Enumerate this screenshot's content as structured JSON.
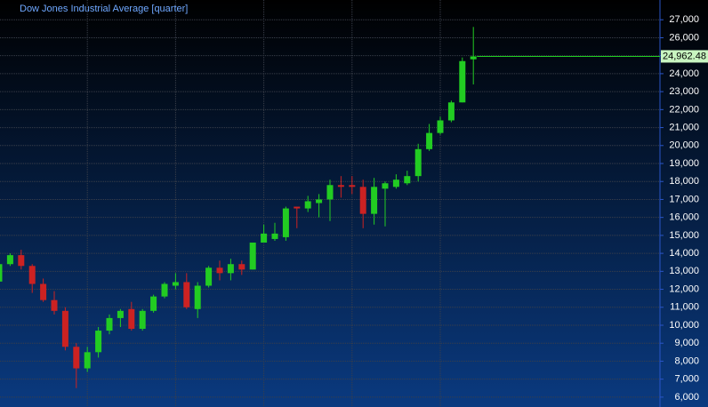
{
  "chart_data": {
    "type": "candlestick",
    "title": "Dow Jones Industrial Average [quarter]",
    "series": [
      {
        "up_color": "#22cc22",
        "down_color": "#cc2222",
        "open": [
          12430,
          13400,
          13900,
          13300,
          12300,
          11400,
          10800,
          8800,
          7600,
          8500,
          9700,
          10400,
          10900,
          9800,
          10800,
          11600,
          12200,
          12400,
          10900,
          12200,
          13200,
          12900,
          13400,
          13100,
          14600,
          14800,
          14900,
          16600,
          16500,
          16800,
          17000,
          17800,
          17800,
          17700,
          16200,
          17600,
          17700,
          17900,
          18300,
          19800,
          20700,
          21400,
          22400,
          24800
        ],
        "high": [
          13700,
          14000,
          14200,
          13400,
          12600,
          11900,
          11000,
          9000,
          8800,
          9900,
          10600,
          10900,
          11300,
          10900,
          11700,
          12400,
          12900,
          12900,
          12400,
          13300,
          13600,
          13700,
          13600,
          14600,
          15600,
          15700,
          16600,
          16600,
          17200,
          17300,
          18100,
          18300,
          18300,
          18100,
          18200,
          18000,
          18400,
          18600,
          20100,
          21200,
          21600,
          22500,
          24900,
          26600
        ],
        "low": [
          12400,
          13300,
          13100,
          11800,
          11300,
          10600,
          8600,
          6500,
          7400,
          8200,
          9500,
          9900,
          9700,
          9700,
          10700,
          11500,
          12000,
          10900,
          10400,
          12100,
          12500,
          12500,
          12800,
          13100,
          14600,
          14700,
          14700,
          15400,
          16300,
          16000,
          15800,
          17100,
          17300,
          15400,
          15600,
          15500,
          17600,
          17800,
          18000,
          19700,
          20600,
          21300,
          22400,
          23400
        ],
        "close": [
          13400,
          13900,
          13300,
          12300,
          11400,
          10800,
          8800,
          7600,
          8500,
          9700,
          10400,
          10800,
          9800,
          10800,
          11600,
          12300,
          12400,
          11000,
          12200,
          13200,
          12900,
          13400,
          13100,
          14600,
          15100,
          15100,
          16500,
          16500,
          16900,
          17000,
          17800,
          17700,
          17700,
          16200,
          17700,
          17900,
          18100,
          18300,
          19800,
          20700,
          21400,
          22400,
          24700,
          24962.48
        ],
        "last_label": "24,962.48"
      }
    ],
    "ylim": [
      5450,
      28100
    ],
    "yticks": [
      {
        "value": 6000,
        "label": "6,000"
      },
      {
        "value": 7000,
        "label": "7,000"
      },
      {
        "value": 8000,
        "label": "8,000"
      },
      {
        "value": 9000,
        "label": "9,000"
      },
      {
        "value": 10000,
        "label": "10,000"
      },
      {
        "value": 11000,
        "label": "11,000"
      },
      {
        "value": 12000,
        "label": "12,000"
      },
      {
        "value": 13000,
        "label": "13,000"
      },
      {
        "value": 14000,
        "label": "14,000"
      },
      {
        "value": 15000,
        "label": "15,000"
      },
      {
        "value": 16000,
        "label": "16,000"
      },
      {
        "value": 17000,
        "label": "17,000"
      },
      {
        "value": 18000,
        "label": "18,000"
      },
      {
        "value": 19000,
        "label": "19,000"
      },
      {
        "value": 20000,
        "label": "20,000"
      },
      {
        "value": 21000,
        "label": "21,000"
      },
      {
        "value": 22000,
        "label": "22,000"
      },
      {
        "value": 23000,
        "label": "23,000"
      },
      {
        "value": 24000,
        "label": "24,000"
      },
      {
        "value": 25000,
        "label": "25,000"
      },
      {
        "value": 26000,
        "label": "26,000"
      },
      {
        "value": 27000,
        "label": "27,000"
      }
    ],
    "grid": true
  }
}
